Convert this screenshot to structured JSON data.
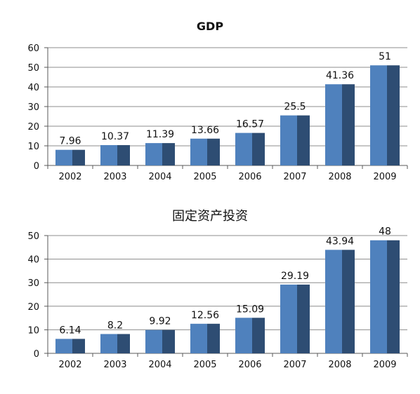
{
  "chart_data": [
    {
      "type": "bar",
      "title": "GDP",
      "xlabel": "",
      "ylabel": "",
      "categories": [
        "2002",
        "2003",
        "2004",
        "2005",
        "2006",
        "2007",
        "2008",
        "2009"
      ],
      "series": [
        {
          "values": [
            7.96,
            10.37,
            11.39,
            13.66,
            16.57,
            25.5,
            41.36,
            51
          ]
        }
      ],
      "data_labels": [
        "7.96",
        "10.37",
        "11.39",
        "13.66",
        "16.57",
        "25.5",
        "41.36",
        "51"
      ],
      "ylim": [
        0,
        60
      ],
      "yticks": [
        "0",
        "10",
        "20",
        "30",
        "40",
        "50",
        "60"
      ],
      "grid": true,
      "colors": {
        "bar_front": "#4f81bd",
        "bar_side": "#2e4d73",
        "grid": "#8c8c8c",
        "axis": "#595959"
      }
    },
    {
      "type": "bar",
      "title": "固定资产投资",
      "xlabel": "",
      "ylabel": "",
      "categories": [
        "2002",
        "2003",
        "2004",
        "2005",
        "2006",
        "2007",
        "2008",
        "2009"
      ],
      "series": [
        {
          "values": [
            6.14,
            8.2,
            9.92,
            12.56,
            15.09,
            29.19,
            43.94,
            48
          ]
        }
      ],
      "data_labels": [
        "6.14",
        "8.2",
        "9.92",
        "12.56",
        "15.09",
        "29.19",
        "43.94",
        "48"
      ],
      "ylim": [
        0,
        50
      ],
      "yticks": [
        "0",
        "10",
        "20",
        "30",
        "40",
        "50"
      ],
      "grid": true,
      "colors": {
        "bar_front": "#4f81bd",
        "bar_side": "#2e4d73",
        "grid": "#8c8c8c",
        "axis": "#595959"
      }
    }
  ]
}
